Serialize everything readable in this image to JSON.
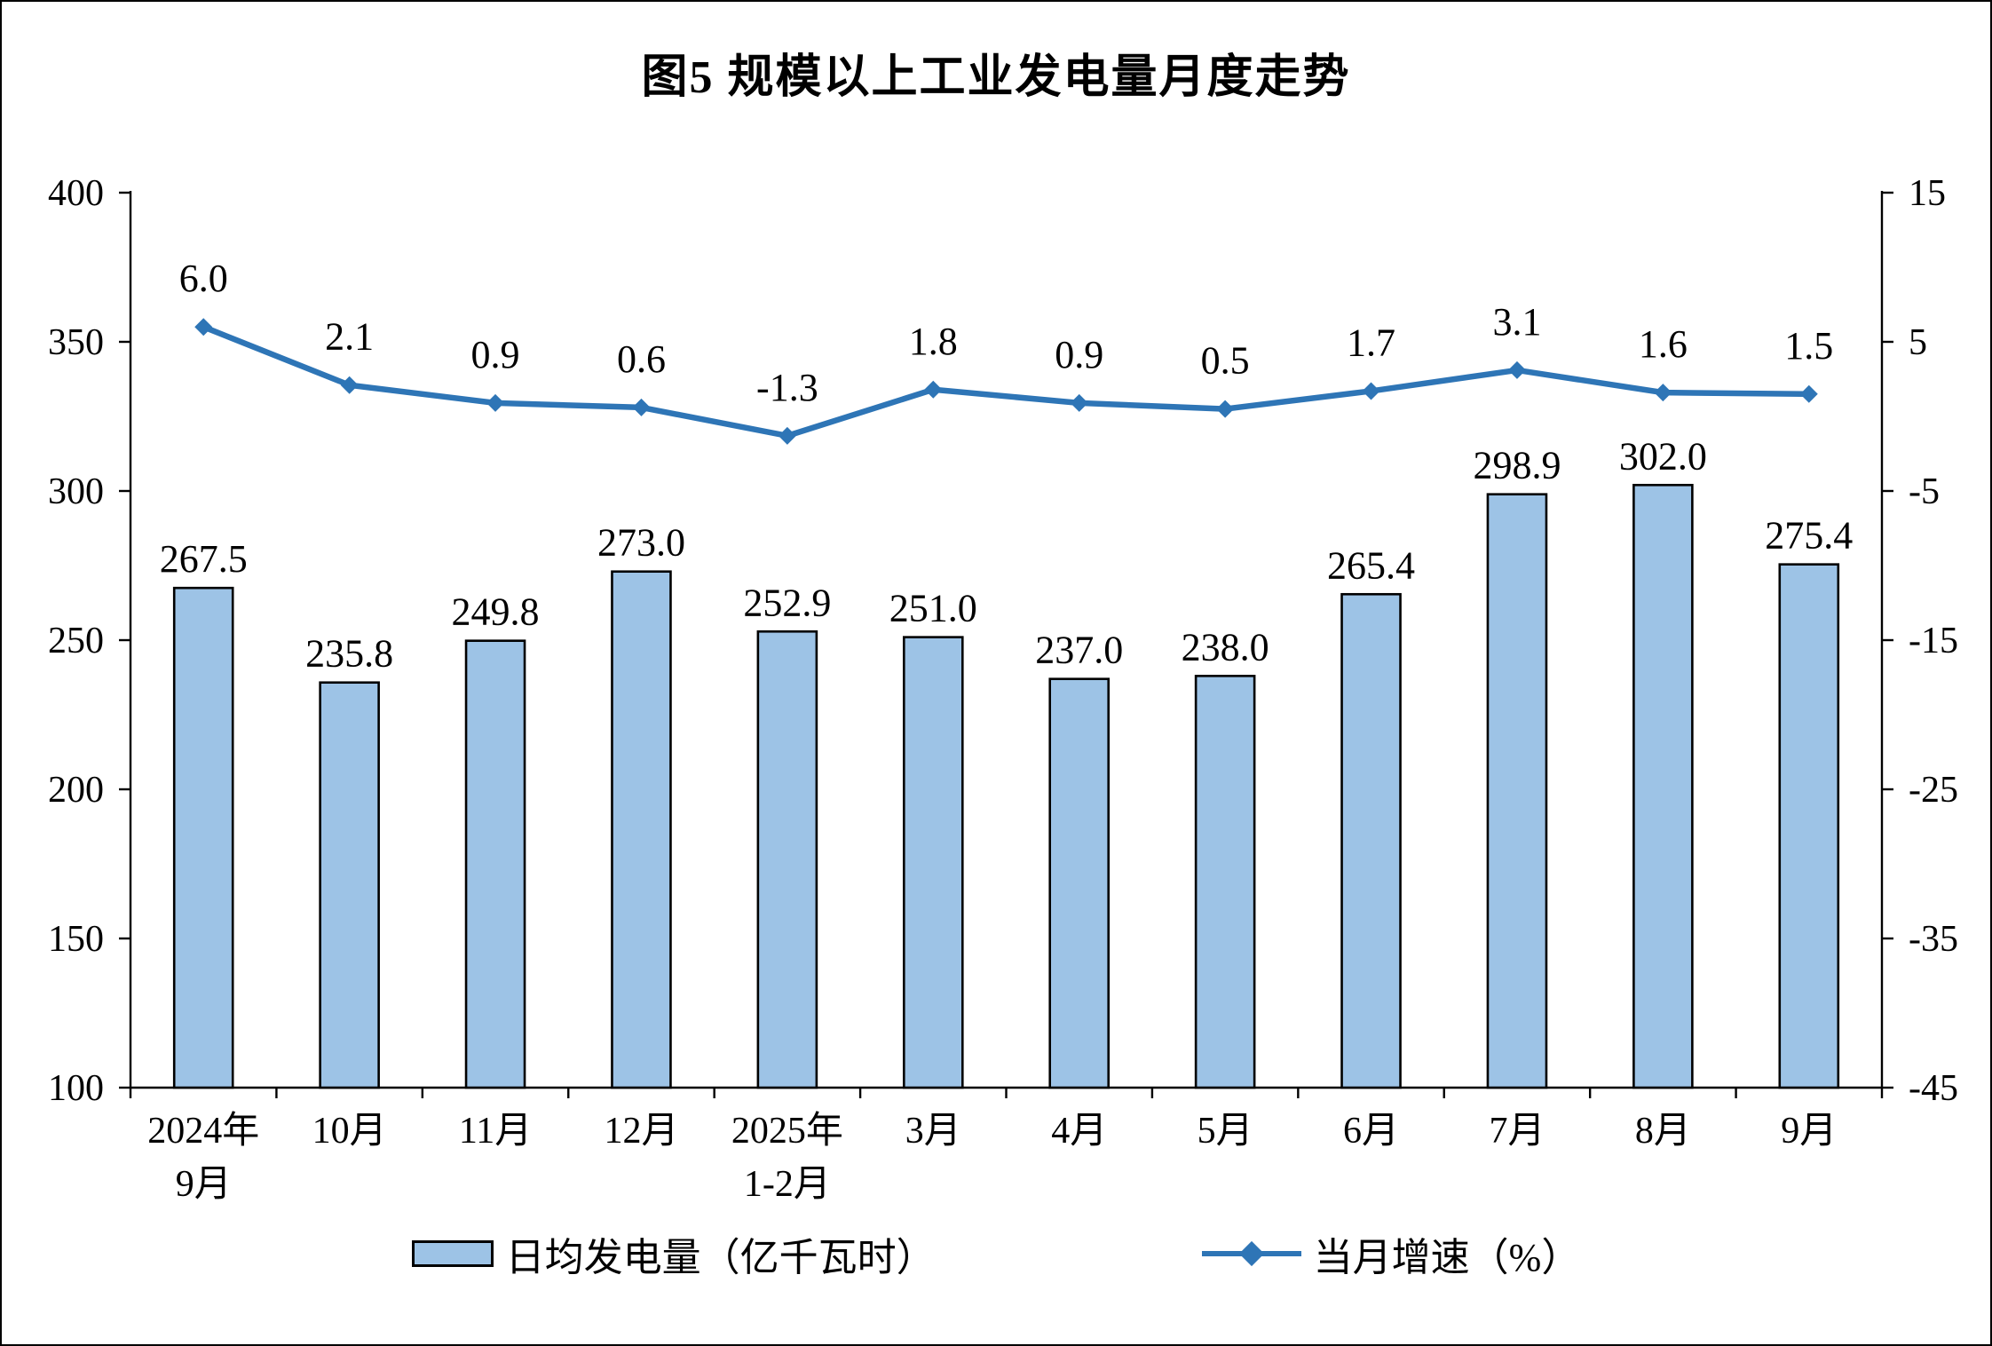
{
  "title": "图5  规模以上工业发电量月度走势",
  "colors": {
    "bar_fill": "#9DC3E6",
    "bar_border": "#000000",
    "line": "#2E75B6",
    "axis": "#000000",
    "text": "#000000"
  },
  "chart_data": {
    "type": "bar",
    "subtype": "bar+line combo, dual y-axes",
    "title": "图5  规模以上工业发电量月度走势",
    "categories": [
      "2024年\n9月",
      "10月",
      "11月",
      "12月",
      "2025年\n1-2月",
      "3月",
      "4月",
      "5月",
      "6月",
      "7月",
      "8月",
      "9月"
    ],
    "series": [
      {
        "name": "日均发电量（亿千瓦时）",
        "type": "bar",
        "axis": "left",
        "values": [
          267.5,
          235.8,
          249.8,
          273.0,
          252.9,
          251.0,
          237.0,
          238.0,
          265.4,
          298.9,
          302.0,
          275.4
        ]
      },
      {
        "name": "当月增速（%）",
        "type": "line",
        "axis": "right",
        "marker": "diamond",
        "values": [
          6.0,
          2.1,
          0.9,
          0.6,
          -1.3,
          1.8,
          0.9,
          0.5,
          1.7,
          3.1,
          1.6,
          1.5
        ]
      }
    ],
    "left_axis": {
      "min": 100,
      "max": 400,
      "ticks": [
        400,
        350,
        300,
        250,
        200,
        150,
        100
      ]
    },
    "right_axis": {
      "min": -45,
      "max": 15,
      "ticks": [
        15,
        5,
        -5,
        -15,
        -25,
        -35,
        -45
      ]
    },
    "grid": false,
    "legend_position": "bottom",
    "data_labels": true
  }
}
